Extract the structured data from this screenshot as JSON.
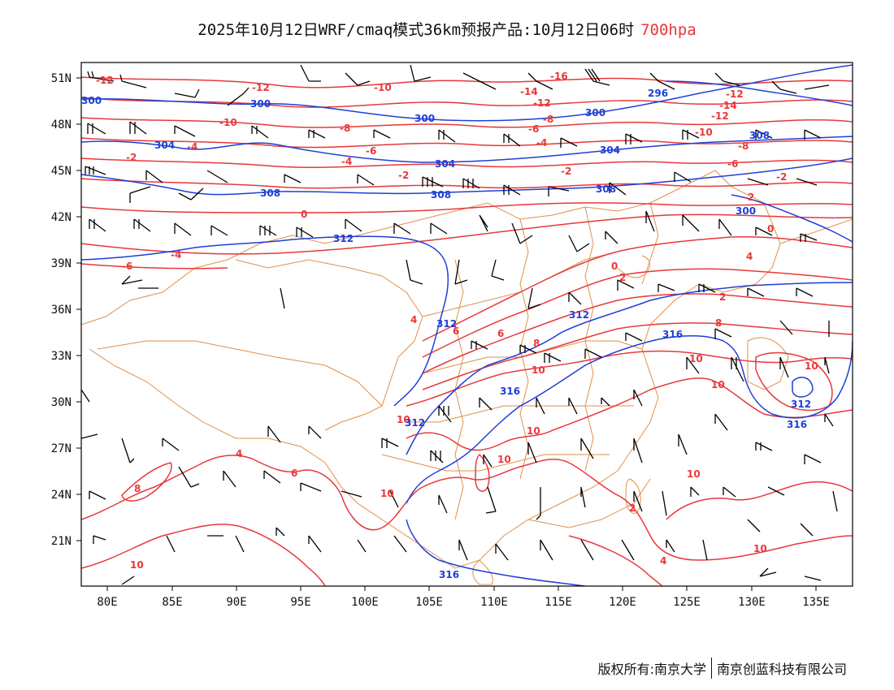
{
  "header": {
    "title": "2025年10月12日WRF/cmaq模式36km预报产品:10月12日06时",
    "level": "700hpa"
  },
  "colors": {
    "temperature_contour": "#e8383a",
    "height_contour": "#1f3fd6",
    "boundary": "#e0904a",
    "wind_barb": "#000000"
  },
  "axes": {
    "lat_labels": [
      "51N",
      "48N",
      "45N",
      "42N",
      "39N",
      "36N",
      "33N",
      "30N",
      "27N",
      "24N",
      "21N"
    ],
    "lon_labels": [
      "80E",
      "85E",
      "90E",
      "95E",
      "100E",
      "105E",
      "110E",
      "115E",
      "120E",
      "125E",
      "130E",
      "135E"
    ]
  },
  "contour_labels": {
    "temperature": [
      "-12",
      "-10",
      "-12",
      "-10",
      "-8",
      "-14",
      "-12",
      "-8",
      "-6",
      "-4",
      "-2",
      "0",
      "-6",
      "-4",
      "-2",
      "-4",
      "-6",
      "-2",
      "-8",
      "-10",
      "-12",
      "-14",
      "-12",
      "-16",
      "-6",
      "-4",
      "-2",
      "0",
      "2",
      "4",
      "6",
      "8",
      "10",
      "10",
      "10",
      "10",
      "10",
      "10",
      "8",
      "6",
      "4",
      "2",
      "0",
      "-2",
      "4",
      "6",
      "8",
      "10",
      "10",
      "10",
      "10",
      "10",
      "2",
      "4"
    ],
    "height": [
      "300",
      "300",
      "304",
      "300",
      "308",
      "304",
      "308",
      "308",
      "312",
      "312",
      "312",
      "316",
      "316",
      "312",
      "316",
      "316",
      "296",
      "300",
      "304",
      "308",
      "312",
      "300"
    ]
  },
  "footer": {
    "left": "版权所有:南京大学",
    "right": "南京创蓝科技有限公司"
  }
}
